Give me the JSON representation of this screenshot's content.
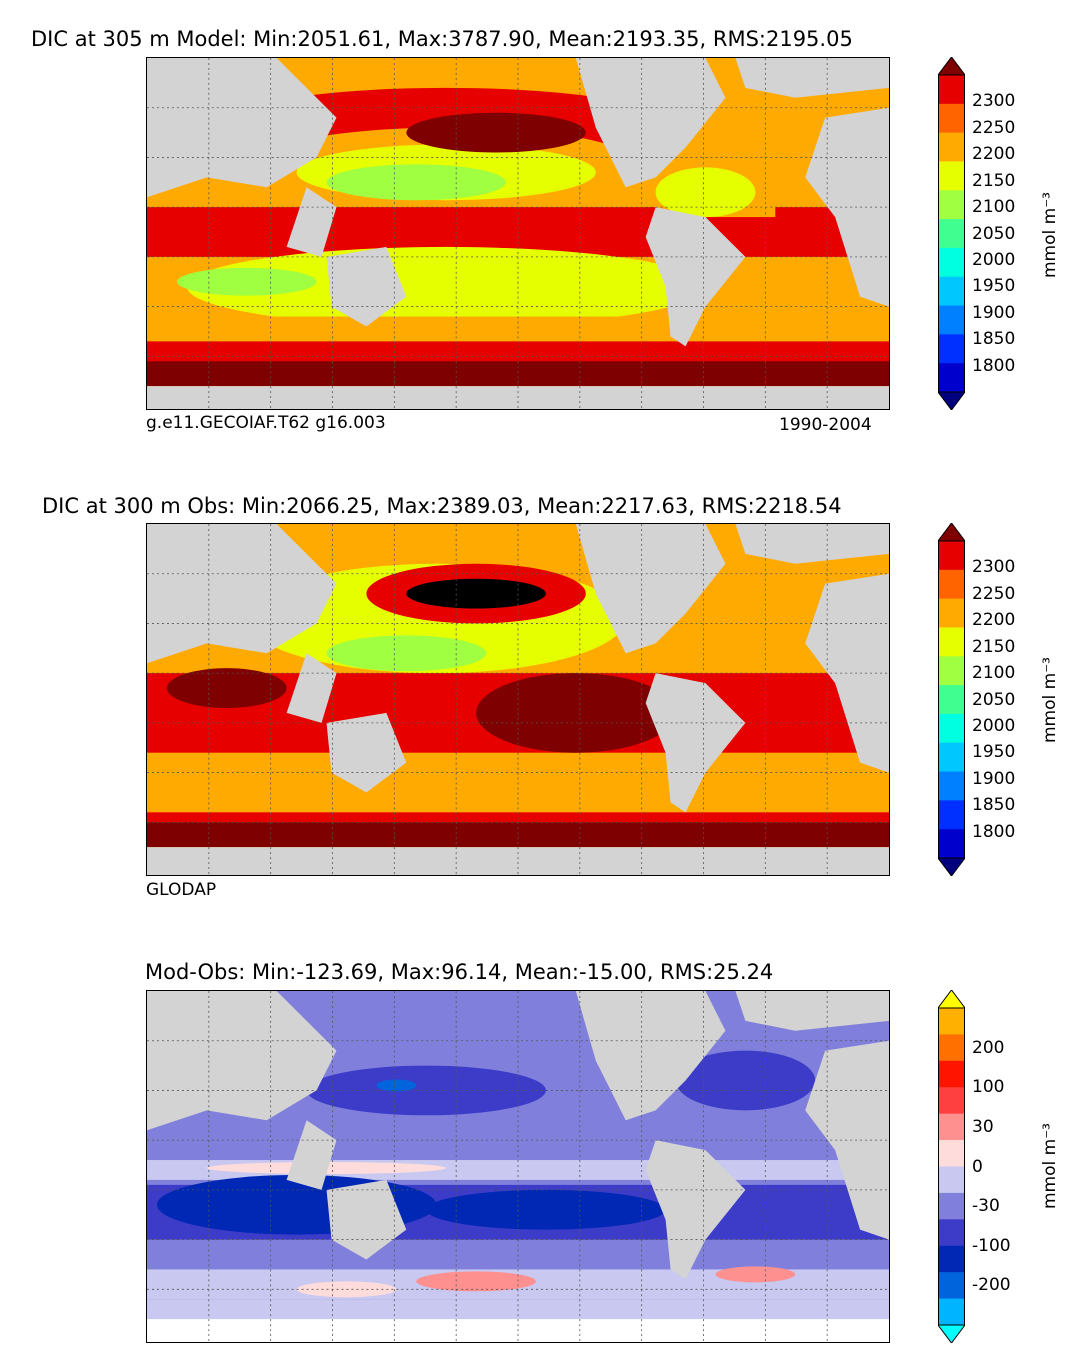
{
  "panels": [
    {
      "title": "DIC at 305 m Model: Min:2051.61, Max:3787.90, Mean:2193.35, RMS:2195.05",
      "caption_left": "g.e11.GECOIAF.T62 g16.003",
      "caption_right": "1990-2004",
      "colorbar_ticks": [
        "2300",
        "2250",
        "2200",
        "2150",
        "2100",
        "2050",
        "2000",
        "1950",
        "1900",
        "1850",
        "1800"
      ],
      "colorbar_unit": "mmol m⁻³"
    },
    {
      "title": "DIC at 300 m Obs: Min:2066.25, Max:2389.03, Mean:2217.63, RMS:2218.54",
      "caption_left": "GLODAP",
      "caption_right": "",
      "colorbar_ticks": [
        "2300",
        "2250",
        "2200",
        "2150",
        "2100",
        "2050",
        "2000",
        "1950",
        "1900",
        "1850",
        "1800"
      ],
      "colorbar_unit": "mmol m⁻³"
    },
    {
      "title": "Mod-Obs: Min:-123.69, Max:96.14, Mean:-15.00, RMS:25.24",
      "caption_left": "",
      "caption_right": "",
      "colorbar_ticks": [
        "200",
        "100",
        "30",
        "0",
        "-30",
        "-100",
        "-200"
      ],
      "colorbar_unit": "mmol m⁻³"
    }
  ],
  "chart_data": [
    {
      "type": "heatmap",
      "title": "DIC at 305 m Model: Min:2051.61, Max:3787.90, Mean:2193.35, RMS:2195.05",
      "colorbar_levels": [
        1800,
        1850,
        1900,
        1950,
        2000,
        2050,
        2100,
        2150,
        2200,
        2250,
        2300
      ],
      "colorbar_colors": [
        "#00007f",
        "#0000cc",
        "#0030ff",
        "#0080ff",
        "#00c8ff",
        "#00ffe0",
        "#40ff90",
        "#a0ff40",
        "#e6ff00",
        "#ffaa00",
        "#ff6400",
        "#e60000",
        "#7f0000"
      ],
      "colorbar_unit": "mmol m⁻³",
      "land_color": "#d3d3d3",
      "grid": true
    },
    {
      "type": "heatmap",
      "title": "DIC at 300 m Obs: Min:2066.25, Max:2389.03, Mean:2217.63, RMS:2218.54",
      "colorbar_levels": [
        1800,
        1850,
        1900,
        1950,
        2000,
        2050,
        2100,
        2150,
        2200,
        2250,
        2300
      ],
      "colorbar_colors": [
        "#00007f",
        "#0000cc",
        "#0030ff",
        "#0080ff",
        "#00c8ff",
        "#00ffe0",
        "#40ff90",
        "#a0ff40",
        "#e6ff00",
        "#ffaa00",
        "#ff6400",
        "#e60000",
        "#7f0000"
      ],
      "colorbar_unit": "mmol m⁻³",
      "land_color": "#d3d3d3",
      "grid": true
    },
    {
      "type": "heatmap",
      "title": "Mod-Obs: Min:-123.69, Max:96.14, Mean:-15.00, RMS:25.24",
      "colorbar_levels": [
        -200,
        -100,
        -30,
        0,
        30,
        100,
        200
      ],
      "colorbar_colors": [
        "#00ffff",
        "#00b4ff",
        "#0064dc",
        "#0028b4",
        "#3c3cc8",
        "#8080dc",
        "#c8c8f0",
        "#ffdcdc",
        "#ff9090",
        "#ff4040",
        "#ff1400",
        "#ff7000",
        "#ffb000",
        "#ffff00"
      ],
      "colorbar_unit": "mmol m⁻³",
      "land_color": "#d3d3d3",
      "grid": true
    }
  ]
}
